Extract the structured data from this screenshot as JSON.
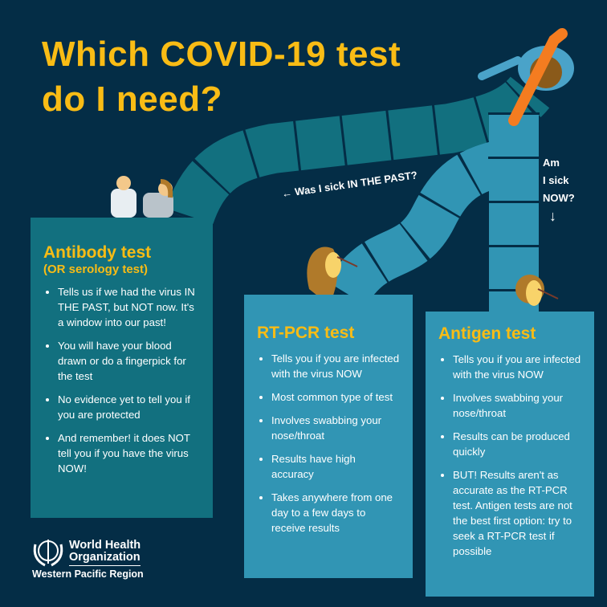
{
  "title_line1": "Which COVID-19 test",
  "title_line2": "do I need?",
  "question_past": "← Was I sick IN THE PAST?",
  "question_now": [
    "Am",
    "I sick",
    "NOW?",
    "↓"
  ],
  "colors": {
    "background": "#042d46",
    "accent": "#f9bc15",
    "antibody_box": "#12707f",
    "test_box": "#3195b4"
  },
  "antibody": {
    "title": "Antibody test",
    "subtitle": "(OR serology test)",
    "items": [
      "Tells us if we had the virus IN THE PAST, but NOT now. It's a window into our past!",
      "You will have your blood drawn or do a fingerpick for the test",
      "No evidence yet to tell you if you are protected",
      "And remember! it does NOT tell you if you have the virus NOW!"
    ]
  },
  "rtpcr": {
    "title": "RT-PCR test",
    "items": [
      "Tells you if you are infected with the virus NOW",
      "Most common  type of test",
      "Involves swabbing your nose/throat",
      "Results have high accuracy",
      "Takes anywhere from one day to a few days to receive results"
    ]
  },
  "antigen": {
    "title": "Antigen test",
    "items": [
      "Tells you if you are infected with the virus NOW",
      "Involves swabbing your nose/throat",
      "Results can be produced  quickly",
      "BUT! Results aren't as accurate as the RT-PCR test. Antigen tests are not the best first option: try to seek a RT-PCR test if possible"
    ]
  },
  "logo": {
    "name_line1": "World Health",
    "name_line2": "Organization",
    "region": "Western Pacific Region"
  }
}
